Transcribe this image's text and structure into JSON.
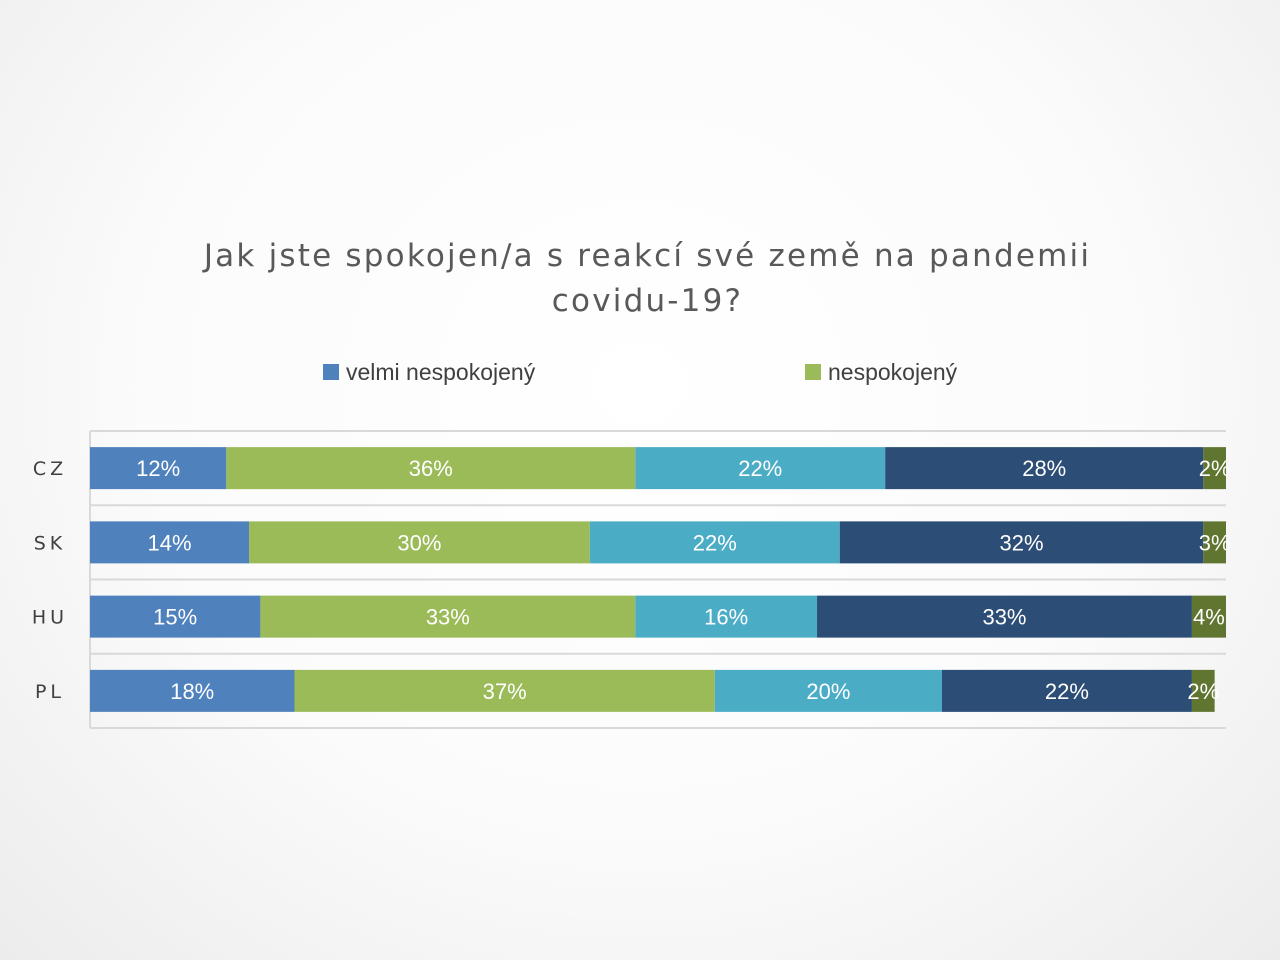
{
  "chart_data": {
    "type": "bar",
    "orientation": "horizontal",
    "stacked": true,
    "percent": true,
    "title": "Jak jste spokojen/a s reakcí své země na pandemii covidu-19?",
    "categories": [
      "CZ",
      "SK",
      "HU",
      "PL"
    ],
    "xlim": [
      0,
      100
    ],
    "grid": true,
    "legend_position": "top",
    "series": [
      {
        "name": "velmi nespokojený",
        "color": "#4f81bd",
        "values": [
          12,
          14,
          15,
          18
        ],
        "labels": [
          "12%",
          "14%",
          "15%",
          "18%"
        ]
      },
      {
        "name": "nespokojený",
        "color": "#9bbb59",
        "values": [
          36,
          30,
          33,
          37
        ],
        "labels": [
          "36%",
          "30%",
          "33%",
          "37%"
        ]
      },
      {
        "color": "#4bacc6",
        "values": [
          22,
          22,
          16,
          20
        ],
        "labels": [
          "22%",
          "22%",
          "16%",
          "20%"
        ]
      },
      {
        "color": "#2c4d75",
        "values": [
          28,
          32,
          33,
          22
        ],
        "labels": [
          "28%",
          "32%",
          "33%",
          "22%"
        ]
      },
      {
        "color": "#5f7530",
        "values": [
          2,
          3,
          4,
          2
        ],
        "labels": [
          "2%",
          "3%",
          "4%",
          "2%"
        ]
      }
    ]
  }
}
